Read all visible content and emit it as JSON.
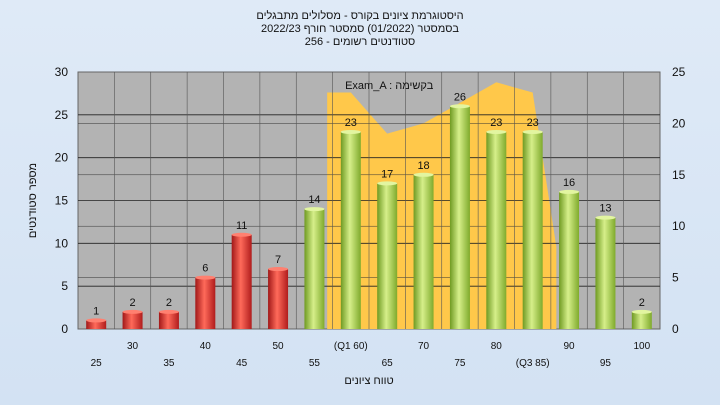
{
  "header": {
    "line1": "היסטוגרמת ציונים בקורס - מסלולים מתבגלים",
    "line2": "בסמסטר  (01/2022)  סמסטר חורף 2022/23",
    "line3": "סטודנטים רשומים - 256"
  },
  "chart_data": {
    "type": "bar",
    "categories": [
      "25",
      "30",
      "35",
      "40",
      "45",
      "50",
      "55",
      "(Q1 60)",
      "65",
      "70",
      "75",
      "80",
      "(Q3 85)",
      "90",
      "95",
      "100"
    ],
    "values": [
      1,
      2,
      2,
      6,
      11,
      7,
      14,
      23,
      17,
      18,
      26,
      23,
      23,
      16,
      13,
      2
    ],
    "bar_colors": [
      "red",
      "red",
      "red",
      "red",
      "red",
      "red",
      "green",
      "green",
      "green",
      "green",
      "green",
      "green",
      "green",
      "green",
      "green",
      "green"
    ],
    "colors": {
      "red": "#e03030",
      "green": "#9cc840",
      "area": "#ffc84a",
      "plot_bg": "#b3b3b3"
    },
    "ylim": [
      0,
      30
    ],
    "yticks": [
      0,
      5,
      10,
      15,
      20,
      25,
      30
    ],
    "y2lim": [
      0,
      25
    ],
    "y2ticks": [
      0,
      5,
      10,
      15,
      20,
      25
    ],
    "xlabel": "טווח ציונים",
    "ylabel": "מספר סטודנטים",
    "area_series": {
      "name": "Exam_A : בקשימה",
      "x_index": [
        7,
        8,
        9,
        10,
        11,
        12
      ],
      "values": [
        23,
        19,
        20,
        22,
        24,
        23
      ]
    },
    "grid": true
  }
}
